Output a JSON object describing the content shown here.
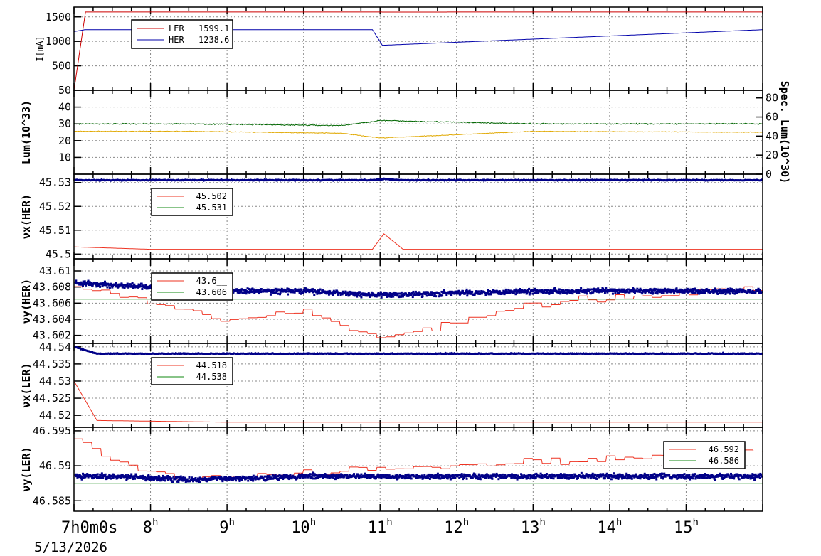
{
  "colors": {
    "ler": "#cc0000",
    "her": "#0000aa",
    "lum_yellow": "#e0a800",
    "lum_green": "#006600",
    "set_red": "#ee3322",
    "set_green": "#118811",
    "meas_blue": "#000088",
    "grid": "#888888"
  },
  "x_axis": {
    "start": "7h0m0s",
    "date": "5/13/2026",
    "hour_ticks": [
      8,
      9,
      10,
      11,
      12,
      13,
      14,
      15
    ],
    "range_hours": [
      7.0,
      16.0
    ]
  },
  "chart_data": [
    {
      "type": "line",
      "ylabel": "I[mA]",
      "ylim": [
        0,
        1700
      ],
      "yticks": [
        "500",
        "1000",
        "1500"
      ],
      "ytick_values": [
        500,
        1000,
        1500
      ],
      "legend_position": "top-left",
      "series": [
        {
          "name": "LER",
          "legend_value": "1599.1",
          "values": [
            0,
            1600,
            1600,
            1599,
            1599.1
          ]
        },
        {
          "name": "HER",
          "legend_value": "1238.6",
          "values": [
            1200,
            1240,
            1240,
            920,
            1238.6
          ]
        }
      ],
      "x_hours": [
        7.0,
        7.15,
        10.9,
        11.03,
        16.0
      ]
    },
    {
      "type": "line",
      "ylabel": "Lum(10^33)",
      "ylabel_right": "Spec. Lum(10^30)",
      "ylim": [
        0,
        50
      ],
      "yticks": [
        "10",
        "20",
        "30",
        "40",
        "50"
      ],
      "ytick_values": [
        10,
        20,
        30,
        40,
        50
      ],
      "ylim_right": [
        0,
        88
      ],
      "yticks_right": [
        "0",
        "20",
        "40",
        "60",
        "80"
      ],
      "ytick_values_right": [
        0,
        20,
        40,
        60,
        80
      ],
      "series": [
        {
          "color_key": "lum_yellow",
          "axis": "right",
          "values": [
            45,
            45,
            43,
            38,
            45,
            44
          ]
        },
        {
          "color_key": "lum_green",
          "axis": "left",
          "values": [
            30,
            30,
            29,
            32,
            30,
            30
          ]
        }
      ],
      "x_hours": [
        7.0,
        8.5,
        10.5,
        11.0,
        13.0,
        16.0
      ]
    },
    {
      "type": "line",
      "ylabel": "νx(HER)",
      "ylim": [
        45.498,
        45.5335
      ],
      "yticks": [
        "45.5",
        "45.51",
        "45.52",
        "45.53"
      ],
      "ytick_values": [
        45.5,
        45.51,
        45.52,
        45.53
      ],
      "legend_position": "top-left",
      "legend": [
        "45.502",
        "45.531"
      ],
      "series": [
        {
          "color_key": "set_red",
          "values": [
            45.503,
            45.502,
            45.502,
            45.5085,
            45.502,
            45.502
          ]
        },
        {
          "color_key": "meas_blue",
          "values": [
            45.531,
            45.531,
            45.531,
            45.5315,
            45.531,
            45.531
          ]
        }
      ],
      "x_hours": [
        7.0,
        8.0,
        10.9,
        11.05,
        11.3,
        16.0
      ]
    },
    {
      "type": "scatter",
      "ylabel": "νy(HER)",
      "ylim": [
        43.601,
        43.6115
      ],
      "yticks": [
        "43.602",
        "43.604",
        "43.606",
        "43.608",
        "43.61"
      ],
      "ytick_values": [
        43.602,
        43.604,
        43.606,
        43.608,
        43.61
      ],
      "legend_position": "top-left",
      "legend": [
        "43.6__",
        "43.606"
      ],
      "series": [
        {
          "color_key": "set_red",
          "values": [
            43.608,
            43.606,
            43.604,
            43.605,
            43.6015,
            43.606,
            43.608
          ]
        },
        {
          "color_key": "set_green",
          "values": [
            43.6065,
            43.6065,
            43.6065,
            43.6065,
            43.6065,
            43.6065,
            43.6065
          ]
        },
        {
          "color_key": "meas_blue",
          "values": [
            43.6085,
            43.608,
            43.6075,
            43.6075,
            43.607,
            43.6075,
            43.6075
          ]
        }
      ],
      "x_hours": [
        7.0,
        8.0,
        9.0,
        10.0,
        11.0,
        13.0,
        16.0
      ]
    },
    {
      "type": "line",
      "ylabel": "νx(LER)",
      "ylim": [
        44.5165,
        44.541
      ],
      "yticks": [
        "44.52",
        "44.525",
        "44.53",
        "44.535",
        "44.54"
      ],
      "ytick_values": [
        44.52,
        44.525,
        44.53,
        44.535,
        44.54
      ],
      "legend_position": "top-left",
      "legend": [
        "44.518",
        "44.538"
      ],
      "series": [
        {
          "color_key": "set_red",
          "values": [
            44.53,
            44.5185,
            44.518,
            44.518,
            44.518
          ]
        },
        {
          "color_key": "meas_blue",
          "values": [
            44.54,
            44.538,
            44.538,
            44.538,
            44.538
          ]
        }
      ],
      "x_hours": [
        7.0,
        7.3,
        9.0,
        12.0,
        16.0
      ]
    },
    {
      "type": "scatter",
      "ylabel": "νy(LER)",
      "ylim": [
        46.5835,
        46.5955
      ],
      "yticks": [
        "46.585",
        "46.59",
        "46.595"
      ],
      "ytick_values": [
        46.585,
        46.59,
        46.595
      ],
      "legend_position": "top-right",
      "legend": [
        "46.592",
        "46.586"
      ],
      "series": [
        {
          "color_key": "set_red",
          "values": [
            46.594,
            46.5905,
            46.588,
            46.589,
            46.59,
            46.591,
            46.592
          ]
        },
        {
          "color_key": "set_green",
          "values": [
            46.5875,
            46.5875,
            46.5875,
            46.5875,
            46.5875,
            46.5875,
            46.5875
          ]
        },
        {
          "color_key": "meas_blue",
          "values": [
            46.5885,
            46.5885,
            46.588,
            46.5885,
            46.5885,
            46.5885,
            46.5885
          ]
        }
      ],
      "x_hours": [
        7.0,
        7.5,
        8.5,
        10.0,
        12.0,
        14.0,
        16.0
      ]
    }
  ]
}
